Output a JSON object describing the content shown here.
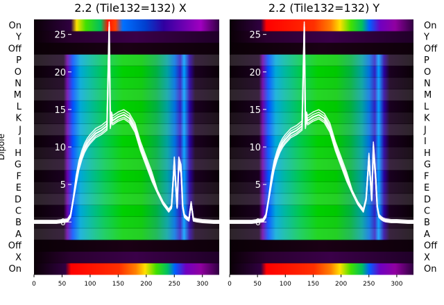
{
  "chart_data": [
    {
      "type": "heatmap",
      "title": "2.2 (Tile132=132) X",
      "ylabel": "Dipole",
      "row_labels": [
        "On",
        "X",
        "Off",
        "A",
        "B",
        "C",
        "D",
        "E",
        "F",
        "G",
        "H",
        "I",
        "J",
        "K",
        "L",
        "M",
        "N",
        "O",
        "P",
        "Off",
        "Y",
        "On"
      ],
      "x_ticks": [
        0,
        50,
        100,
        150,
        200,
        250,
        300
      ],
      "xlim": [
        0,
        330
      ],
      "overlay_y_ticks": [
        0,
        5,
        10,
        15,
        20,
        25
      ],
      "overlay_ylim": [
        -7,
        27
      ],
      "overlay_line": {
        "x": [
          0,
          40,
          60,
          65,
          70,
          75,
          80,
          85,
          90,
          95,
          100,
          110,
          120,
          130,
          134,
          136,
          138,
          140,
          150,
          160,
          170,
          180,
          190,
          200,
          210,
          220,
          230,
          240,
          245,
          250,
          255,
          258,
          262,
          265,
          268,
          272,
          276,
          280,
          284,
          290,
          300,
          320,
          330
        ],
        "y": [
          0,
          0,
          0.2,
          0.8,
          3,
          5.5,
          7.5,
          8.8,
          9.8,
          10.5,
          11,
          11.8,
          12.2,
          12.8,
          26,
          13,
          14,
          13.5,
          14,
          14.3,
          13.8,
          12.5,
          10,
          8,
          6,
          4,
          2.5,
          1.5,
          2,
          8,
          2,
          8,
          7,
          2,
          0.8,
          0.5,
          0.3,
          2.5,
          0.3,
          0.2,
          0.1,
          0,
          0
        ]
      }
    },
    {
      "type": "heatmap",
      "title": "2.2 (Tile132=132) Y",
      "row_labels": [
        "On",
        "X",
        "Off",
        "A",
        "B",
        "C",
        "D",
        "E",
        "F",
        "G",
        "H",
        "I",
        "J",
        "K",
        "L",
        "M",
        "N",
        "O",
        "P",
        "Off",
        "Y",
        "On"
      ],
      "x_ticks": [
        0,
        50,
        100,
        150,
        200,
        250,
        300
      ],
      "xlim": [
        0,
        330
      ],
      "overlay_y_ticks": [
        0,
        5,
        10,
        15,
        20,
        25
      ],
      "overlay_ylim": [
        -7,
        27
      ],
      "overlay_line": {
        "x": [
          0,
          40,
          60,
          65,
          70,
          75,
          80,
          85,
          90,
          95,
          100,
          110,
          120,
          130,
          134,
          136,
          138,
          140,
          150,
          160,
          170,
          180,
          190,
          200,
          210,
          220,
          230,
          240,
          245,
          250,
          255,
          258,
          262,
          265,
          268,
          272,
          276,
          280,
          290,
          300,
          320,
          330
        ],
        "y": [
          0,
          0,
          0.2,
          0.8,
          3,
          5.5,
          7.5,
          8.8,
          9.8,
          10.5,
          11,
          11.8,
          12.2,
          12.8,
          26,
          13,
          14,
          13.5,
          14,
          14.3,
          13.8,
          12.5,
          10,
          8,
          6,
          4,
          2.5,
          1.5,
          3,
          8.5,
          3,
          10,
          6,
          2,
          0.8,
          0.5,
          0.3,
          0.2,
          0.1,
          0.1,
          0,
          0
        ]
      }
    }
  ]
}
